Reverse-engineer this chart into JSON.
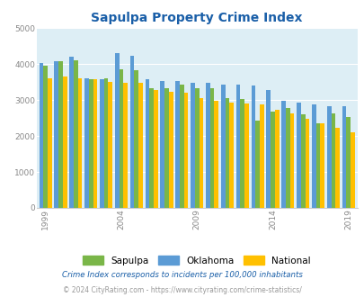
{
  "title": "Sapulpa Property Crime Index",
  "years": [
    1999,
    2000,
    2001,
    2002,
    2003,
    2004,
    2005,
    2006,
    2007,
    2008,
    2009,
    2010,
    2011,
    2012,
    2013,
    2014,
    2015,
    2016,
    2017,
    2018,
    2019
  ],
  "sapulpa": [
    3950,
    4070,
    4110,
    3580,
    3600,
    3850,
    3820,
    3320,
    3320,
    3430,
    3320,
    3320,
    3050,
    3020,
    2440,
    2680,
    2780,
    2600,
    2350,
    2630,
    2530
  ],
  "oklahoma": [
    4040,
    4080,
    4200,
    3600,
    3590,
    4300,
    4230,
    3590,
    3530,
    3530,
    3480,
    3480,
    3430,
    3430,
    3400,
    3290,
    2980,
    2930,
    2870,
    2840,
    2820
  ],
  "national": [
    3600,
    3650,
    3600,
    3570,
    3510,
    3480,
    3470,
    3280,
    3240,
    3210,
    3050,
    2990,
    2940,
    2900,
    2870,
    2740,
    2620,
    2490,
    2360,
    2220,
    2110
  ],
  "bar_colors_order": [
    "#5b9bd5",
    "#7ab648",
    "#ffc000"
  ],
  "bg_color": "#ddeef5",
  "ylim": [
    0,
    5000
  ],
  "yticks": [
    0,
    1000,
    2000,
    3000,
    4000,
    5000
  ],
  "xtick_years": [
    1999,
    2004,
    2009,
    2014,
    2019
  ],
  "xtick_labels": [
    "1999",
    "2004",
    "2009",
    "2014",
    "2019"
  ],
  "legend_labels": [
    "Sapulpa",
    "Oklahoma",
    "National"
  ],
  "legend_colors": [
    "#7ab648",
    "#5b9bd5",
    "#ffc000"
  ],
  "footnote1": "Crime Index corresponds to incidents per 100,000 inhabitants",
  "footnote2": "© 2024 CityRating.com - https://www.cityrating.com/crime-statistics/",
  "title_color": "#1a5fa8",
  "footnote1_color": "#1a5fa8",
  "footnote2_color": "#999999",
  "grid_color": "#ffffff",
  "bar_width": 0.28
}
